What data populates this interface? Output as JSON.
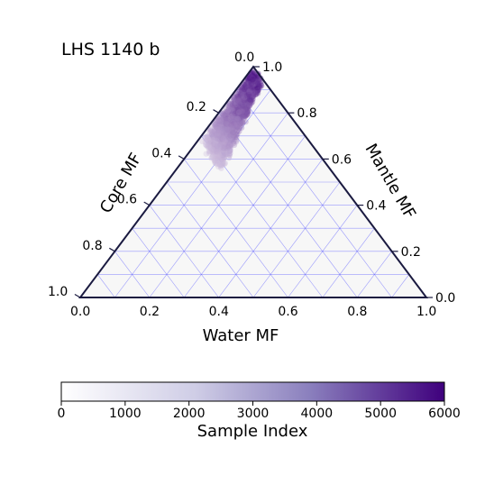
{
  "chart_data": {
    "type": "scatter",
    "title": "LHS 1140 b",
    "axes": {
      "core": {
        "label": "Core MF",
        "ticks": [
          "0.0",
          "0.2",
          "0.4",
          "0.6",
          "0.8",
          "1.0"
        ],
        "ticks_shown": [
          "0.2",
          "0.4",
          "0.6",
          "0.8",
          "1.0"
        ]
      },
      "mantle": {
        "label": "Mantle MF",
        "ticks": [
          "1.0",
          "0.8",
          "0.6",
          "0.4",
          "0.2",
          "0.0"
        ]
      },
      "water": {
        "label": "Water MF",
        "ticks": [
          "0.0",
          "0.2",
          "0.4",
          "0.6",
          "0.8",
          "1.0"
        ]
      }
    },
    "apex_label": "0.0",
    "grid": true,
    "colorbar": {
      "label": "Sample Index",
      "ticks": [
        "0",
        "1000",
        "2000",
        "3000",
        "4000",
        "5000",
        "6000"
      ],
      "range": [
        0,
        6000
      ]
    },
    "colors": {
      "light": "#ffffff",
      "dark": "#3f007d",
      "grid": "#4b4bff",
      "frame": "#1a1a40",
      "background": "#f7f7f7"
    },
    "cluster": {
      "description_points": [
        {
          "water": 0.02,
          "core": 0.0,
          "mantle": 0.98
        },
        {
          "water": 0.05,
          "core": 0.22,
          "mantle": 0.73
        },
        {
          "water": 0.1,
          "core": 0.3,
          "mantle": 0.6
        }
      ]
    }
  }
}
